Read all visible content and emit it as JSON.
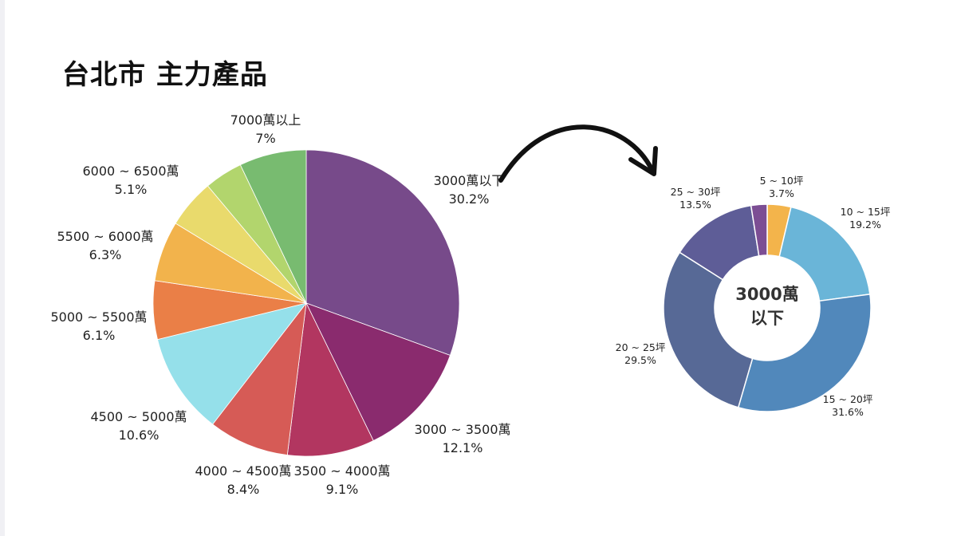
{
  "title": "台北市 主力產品",
  "chart_data": [
    {
      "type": "pie",
      "name": "price-range-pie",
      "categories": [
        "3000萬以下",
        "3000 ~ 3500萬",
        "3500 ~ 4000萬",
        "4000 ~ 4500萬",
        "4500 ~ 5000萬",
        "5000 ~ 5500萬",
        "5500 ~ 6000萬",
        "6000 ~ 6500萬",
        "7000萬以上"
      ],
      "values": [
        30.2,
        12.1,
        9.1,
        8.4,
        10.6,
        6.1,
        6.3,
        5.1,
        7
      ],
      "value_labels": [
        "30.2%",
        "12.1%",
        "9.1%",
        "8.4%",
        "10.6%",
        "6.1%",
        "6.3%",
        "5.1%",
        "7%"
      ],
      "colors": [
        "#774a8a",
        "#8a2b6e",
        "#b23660",
        "#d65b56",
        "#95e0ea",
        "#ea7f47",
        "#f2b34c",
        "#e9da6c",
        "#b2d56d",
        "#78bb70"
      ]
    },
    {
      "type": "pie",
      "name": "size-range-donut",
      "subset_of": "3000萬以下",
      "center_label": [
        "3000萬",
        "以下"
      ],
      "categories": [
        "5 ~ 10坪",
        "10 ~ 15坪",
        "15 ~ 20坪",
        "20 ~ 25坪",
        "25 ~ 30坪"
      ],
      "values": [
        3.7,
        19.2,
        31.6,
        29.5,
        13.5
      ],
      "value_labels": [
        "3.7%",
        "19.2%",
        "31.6%",
        "29.5%",
        "13.5%"
      ],
      "colors": [
        "#f3b44b",
        "#6ab5d8",
        "#5188bb",
        "#576996",
        "#5e5d97",
        "#7c4e94"
      ]
    }
  ]
}
